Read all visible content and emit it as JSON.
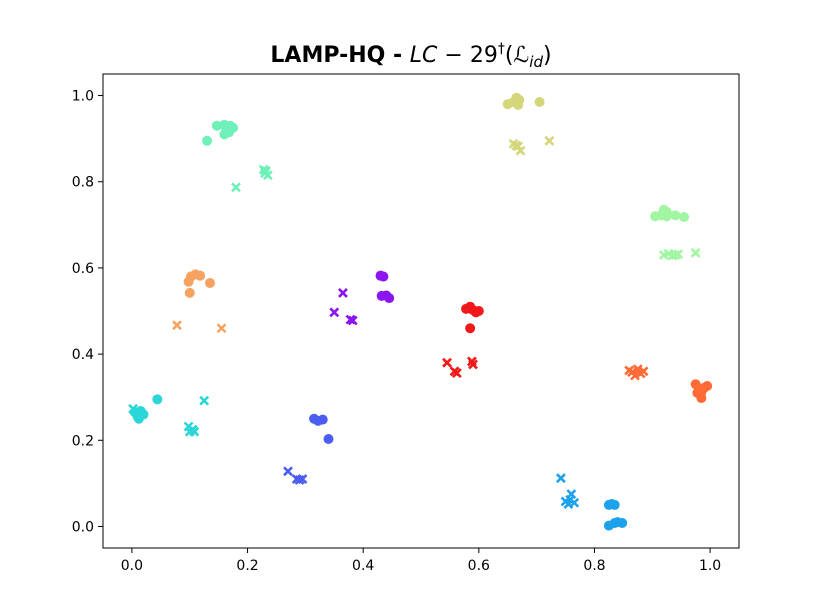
{
  "chart_data": {
    "type": "scatter",
    "title": {
      "bold": "LAMP-HQ - ",
      "math_italic_1": "LC",
      "math_rest": " − 29",
      "superscript": "†",
      "open_paren": "(",
      "script_l": "ℒ",
      "subscript": "id",
      "close_paren": ")"
    },
    "xlabel": "",
    "ylabel": "",
    "xlim": [
      -0.05,
      1.05
    ],
    "ylim": [
      -0.05,
      1.05
    ],
    "x_ticks": [
      {
        "value": 0.0,
        "label": "0.0"
      },
      {
        "value": 0.2,
        "label": "0.2"
      },
      {
        "value": 0.4,
        "label": "0.4"
      },
      {
        "value": 0.6,
        "label": "0.6"
      },
      {
        "value": 0.8,
        "label": "0.8"
      },
      {
        "value": 1.0,
        "label": "1.0"
      }
    ],
    "y_ticks": [
      {
        "value": 0.0,
        "label": "0.0"
      },
      {
        "value": 0.2,
        "label": "0.2"
      },
      {
        "value": 0.4,
        "label": "0.4"
      },
      {
        "value": 0.6,
        "label": "0.6"
      },
      {
        "value": 0.8,
        "label": "0.8"
      },
      {
        "value": 1.0,
        "label": "1.0"
      }
    ],
    "grid": false,
    "legend": "none",
    "marker_types": [
      "circle",
      "cross"
    ],
    "series": [
      {
        "color": "#d4d67a",
        "circles": [
          [
            0.65,
            0.98
          ],
          [
            0.66,
            0.985
          ],
          [
            0.665,
            0.995
          ],
          [
            0.668,
            0.978
          ],
          [
            0.67,
            0.99
          ],
          [
            0.705,
            0.985
          ]
        ],
        "crosses": [
          [
            0.66,
            0.888
          ],
          [
            0.665,
            0.884
          ],
          [
            0.668,
            0.882
          ],
          [
            0.672,
            0.872
          ],
          [
            0.722,
            0.895
          ]
        ]
      },
      {
        "color": "#6ff0b8",
        "circles": [
          [
            0.13,
            0.895
          ],
          [
            0.147,
            0.93
          ],
          [
            0.16,
            0.932
          ],
          [
            0.163,
            0.925
          ],
          [
            0.168,
            0.915
          ],
          [
            0.17,
            0.93
          ],
          [
            0.175,
            0.925
          ],
          [
            0.16,
            0.91
          ]
        ],
        "crosses": [
          [
            0.18,
            0.787
          ],
          [
            0.228,
            0.828
          ],
          [
            0.23,
            0.82
          ],
          [
            0.232,
            0.825
          ],
          [
            0.235,
            0.815
          ]
        ]
      },
      {
        "color": "#a2f5a2",
        "circles": [
          [
            0.905,
            0.72
          ],
          [
            0.915,
            0.722
          ],
          [
            0.92,
            0.735
          ],
          [
            0.925,
            0.73
          ],
          [
            0.925,
            0.72
          ],
          [
            0.94,
            0.722
          ],
          [
            0.955,
            0.718
          ]
        ],
        "crosses": [
          [
            0.92,
            0.63
          ],
          [
            0.928,
            0.633
          ],
          [
            0.935,
            0.628
          ],
          [
            0.94,
            0.63
          ],
          [
            0.945,
            0.632
          ],
          [
            0.975,
            0.635
          ]
        ]
      },
      {
        "color": "#f6a260",
        "circles": [
          [
            0.098,
            0.568
          ],
          [
            0.102,
            0.58
          ],
          [
            0.11,
            0.585
          ],
          [
            0.118,
            0.582
          ],
          [
            0.1,
            0.542
          ],
          [
            0.135,
            0.565
          ]
        ],
        "crosses": [
          [
            0.078,
            0.467
          ],
          [
            0.155,
            0.46
          ]
        ]
      },
      {
        "color": "#8b16f0",
        "circles": [
          [
            0.43,
            0.582
          ],
          [
            0.435,
            0.58
          ],
          [
            0.432,
            0.535
          ],
          [
            0.44,
            0.536
          ],
          [
            0.445,
            0.53
          ]
        ],
        "crosses": [
          [
            0.35,
            0.497
          ],
          [
            0.365,
            0.542
          ],
          [
            0.378,
            0.48
          ],
          [
            0.382,
            0.478
          ]
        ]
      },
      {
        "color": "#f01818",
        "circles": [
          [
            0.578,
            0.505
          ],
          [
            0.585,
            0.51
          ],
          [
            0.59,
            0.502
          ],
          [
            0.595,
            0.497
          ],
          [
            0.6,
            0.5
          ],
          [
            0.585,
            0.46
          ]
        ],
        "crosses": [
          [
            0.545,
            0.38
          ],
          [
            0.558,
            0.36
          ],
          [
            0.562,
            0.356
          ],
          [
            0.588,
            0.383
          ],
          [
            0.59,
            0.376
          ]
        ]
      },
      {
        "color": "#ff6a36",
        "circles": [
          [
            0.975,
            0.33
          ],
          [
            0.982,
            0.318
          ],
          [
            0.985,
            0.312
          ],
          [
            0.99,
            0.322
          ],
          [
            0.995,
            0.326
          ],
          [
            0.978,
            0.31
          ],
          [
            0.985,
            0.298
          ]
        ],
        "crosses": [
          [
            0.86,
            0.362
          ],
          [
            0.865,
            0.358
          ],
          [
            0.87,
            0.35
          ],
          [
            0.875,
            0.365
          ],
          [
            0.88,
            0.355
          ],
          [
            0.885,
            0.36
          ]
        ]
      },
      {
        "color": "#2ad6d8",
        "circles": [
          [
            0.005,
            0.265
          ],
          [
            0.01,
            0.255
          ],
          [
            0.012,
            0.25
          ],
          [
            0.015,
            0.268
          ],
          [
            0.02,
            0.26
          ],
          [
            0.044,
            0.295
          ]
        ],
        "crosses": [
          [
            0.002,
            0.273
          ],
          [
            0.098,
            0.232
          ],
          [
            0.1,
            0.22
          ],
          [
            0.105,
            0.225
          ],
          [
            0.108,
            0.22
          ],
          [
            0.125,
            0.292
          ]
        ]
      },
      {
        "color": "#4c5ef2",
        "circles": [
          [
            0.315,
            0.25
          ],
          [
            0.322,
            0.245
          ],
          [
            0.33,
            0.248
          ],
          [
            0.34,
            0.203
          ]
        ],
        "crosses": [
          [
            0.27,
            0.128
          ],
          [
            0.285,
            0.11
          ],
          [
            0.29,
            0.108
          ],
          [
            0.295,
            0.11
          ]
        ]
      },
      {
        "color": "#1ca2ec",
        "circles": [
          [
            0.825,
            0.05
          ],
          [
            0.83,
            0.052
          ],
          [
            0.835,
            0.05
          ],
          [
            0.825,
            0.002
          ],
          [
            0.835,
            0.008
          ],
          [
            0.84,
            0.01
          ],
          [
            0.848,
            0.008
          ]
        ],
        "crosses": [
          [
            0.742,
            0.112
          ],
          [
            0.75,
            0.058
          ],
          [
            0.755,
            0.052
          ],
          [
            0.758,
            0.062
          ],
          [
            0.76,
            0.075
          ],
          [
            0.765,
            0.055
          ]
        ]
      }
    ]
  }
}
